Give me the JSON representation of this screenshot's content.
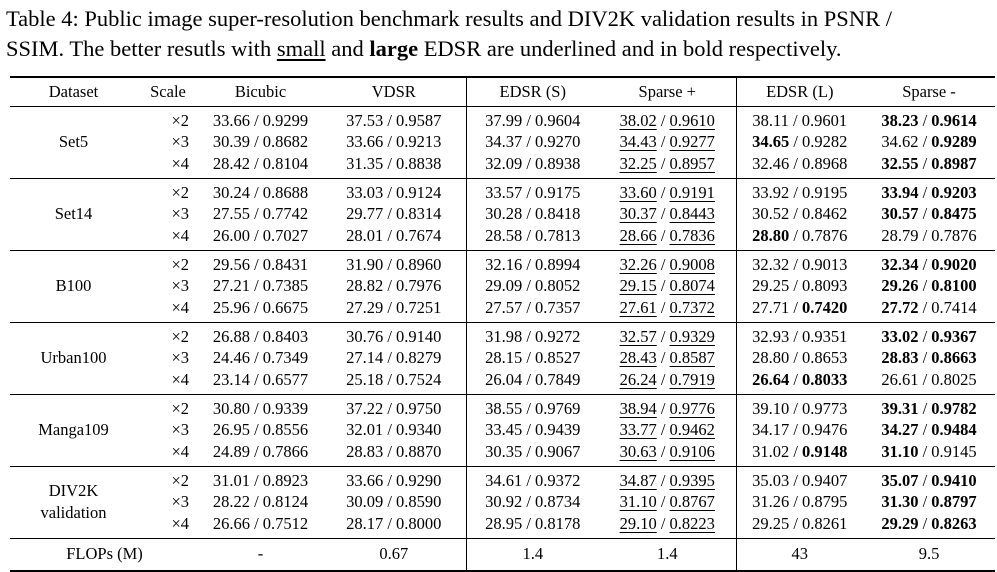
{
  "caption": {
    "line1": "Table 4: Public image super-resolution benchmark results and DIV2K validation results in PSNR /",
    "line2_pre": "SSIM. The better resutls with ",
    "line2_small": "small",
    "line2_mid": " and ",
    "line2_large": "large",
    "line2_post": " EDSR are underlined and in bold respectively."
  },
  "headers": [
    "Dataset",
    "Scale",
    "Bicubic",
    "VDSR",
    "EDSR (S)",
    "Sparse +",
    "EDSR (L)",
    "Sparse -"
  ],
  "groups": [
    {
      "name": "Set5",
      "rows": [
        {
          "scale": "×2",
          "bicubic": "33.66 / 0.9299",
          "vdsr": "37.53 / 0.9587",
          "edsr_s": "37.99 / 0.9604",
          "sparse_p": [
            "38.02",
            "0.9610"
          ],
          "sp_u": [
            true,
            true
          ],
          "edsr_l": [
            "38.11",
            "0.9601"
          ],
          "el_b": [
            false,
            false
          ],
          "sparse_m": [
            "38.23",
            "0.9614"
          ],
          "sm_b": [
            true,
            true
          ]
        },
        {
          "scale": "×3",
          "bicubic": "30.39 / 0.8682",
          "vdsr": "33.66 / 0.9213",
          "edsr_s": "34.37 / 0.9270",
          "sparse_p": [
            "34.43",
            "0.9277"
          ],
          "sp_u": [
            true,
            true
          ],
          "edsr_l": [
            "34.65",
            "0.9282"
          ],
          "el_b": [
            true,
            false
          ],
          "sparse_m": [
            "34.62",
            "0.9289"
          ],
          "sm_b": [
            false,
            true
          ]
        },
        {
          "scale": "×4",
          "bicubic": "28.42 / 0.8104",
          "vdsr": "31.35 / 0.8838",
          "edsr_s": "32.09 / 0.8938",
          "sparse_p": [
            "32.25",
            "0.8957"
          ],
          "sp_u": [
            true,
            true
          ],
          "edsr_l": [
            "32.46",
            "0.8968"
          ],
          "el_b": [
            false,
            false
          ],
          "sparse_m": [
            "32.55",
            "0.8987"
          ],
          "sm_b": [
            true,
            true
          ]
        }
      ]
    },
    {
      "name": "Set14",
      "rows": [
        {
          "scale": "×2",
          "bicubic": "30.24 / 0.8688",
          "vdsr": "33.03 / 0.9124",
          "edsr_s": "33.57 / 0.9175",
          "sparse_p": [
            "33.60",
            "0.9191"
          ],
          "sp_u": [
            true,
            true
          ],
          "edsr_l": [
            "33.92",
            "0.9195"
          ],
          "el_b": [
            false,
            false
          ],
          "sparse_m": [
            "33.94",
            "0.9203"
          ],
          "sm_b": [
            true,
            true
          ]
        },
        {
          "scale": "×3",
          "bicubic": "27.55 / 0.7742",
          "vdsr": "29.77 / 0.8314",
          "edsr_s": "30.28 / 0.8418",
          "sparse_p": [
            "30.37",
            "0.8443"
          ],
          "sp_u": [
            true,
            true
          ],
          "edsr_l": [
            "30.52",
            "0.8462"
          ],
          "el_b": [
            false,
            false
          ],
          "sparse_m": [
            "30.57",
            "0.8475"
          ],
          "sm_b": [
            true,
            true
          ]
        },
        {
          "scale": "×4",
          "bicubic": "26.00 / 0.7027",
          "vdsr": "28.01 / 0.7674",
          "edsr_s": "28.58 / 0.7813",
          "sparse_p": [
            "28.66",
            "0.7836"
          ],
          "sp_u": [
            true,
            true
          ],
          "edsr_l": [
            "28.80",
            "0.7876"
          ],
          "el_b": [
            true,
            false
          ],
          "sparse_m": [
            "28.79",
            "0.7876"
          ],
          "sm_b": [
            false,
            false
          ]
        }
      ]
    },
    {
      "name": "B100",
      "rows": [
        {
          "scale": "×2",
          "bicubic": "29.56 / 0.8431",
          "vdsr": "31.90 / 0.8960",
          "edsr_s": "32.16 / 0.8994",
          "sparse_p": [
            "32.26",
            "0.9008"
          ],
          "sp_u": [
            true,
            true
          ],
          "edsr_l": [
            "32.32",
            "0.9013"
          ],
          "el_b": [
            false,
            false
          ],
          "sparse_m": [
            "32.34",
            "0.9020"
          ],
          "sm_b": [
            true,
            true
          ]
        },
        {
          "scale": "×3",
          "bicubic": "27.21 / 0.7385",
          "vdsr": "28.82 / 0.7976",
          "edsr_s": "29.09 / 0.8052",
          "sparse_p": [
            "29.15",
            "0.8074"
          ],
          "sp_u": [
            true,
            true
          ],
          "edsr_l": [
            "29.25",
            "0.8093"
          ],
          "el_b": [
            false,
            false
          ],
          "sparse_m": [
            "29.26",
            "0.8100"
          ],
          "sm_b": [
            true,
            true
          ]
        },
        {
          "scale": "×4",
          "bicubic": "25.96 / 0.6675",
          "vdsr": "27.29 / 0.7251",
          "edsr_s": "27.57 / 0.7357",
          "sparse_p": [
            "27.61",
            "0.7372"
          ],
          "sp_u": [
            true,
            true
          ],
          "edsr_l": [
            "27.71",
            "0.7420"
          ],
          "el_b": [
            false,
            true
          ],
          "sparse_m": [
            "27.72",
            "0.7414"
          ],
          "sm_b": [
            true,
            false
          ]
        }
      ]
    },
    {
      "name": "Urban100",
      "rows": [
        {
          "scale": "×2",
          "bicubic": "26.88 / 0.8403",
          "vdsr": "30.76 / 0.9140",
          "edsr_s": "31.98 / 0.9272",
          "sparse_p": [
            "32.57",
            "0.9329"
          ],
          "sp_u": [
            true,
            true
          ],
          "edsr_l": [
            "32.93",
            "0.9351"
          ],
          "el_b": [
            false,
            false
          ],
          "sparse_m": [
            "33.02",
            "0.9367"
          ],
          "sm_b": [
            true,
            true
          ]
        },
        {
          "scale": "×3",
          "bicubic": "24.46 / 0.7349",
          "vdsr": "27.14 / 0.8279",
          "edsr_s": "28.15 / 0.8527",
          "sparse_p": [
            "28.43",
            "0.8587"
          ],
          "sp_u": [
            true,
            true
          ],
          "edsr_l": [
            "28.80",
            "0.8653"
          ],
          "el_b": [
            false,
            false
          ],
          "sparse_m": [
            "28.83",
            "0.8663"
          ],
          "sm_b": [
            true,
            true
          ]
        },
        {
          "scale": "×4",
          "bicubic": "23.14 / 0.6577",
          "vdsr": "25.18 / 0.7524",
          "edsr_s": "26.04 / 0.7849",
          "sparse_p": [
            "26.24",
            "0.7919"
          ],
          "sp_u": [
            true,
            true
          ],
          "edsr_l": [
            "26.64",
            "0.8033"
          ],
          "el_b": [
            true,
            true
          ],
          "sparse_m": [
            "26.61",
            "0.8025"
          ],
          "sm_b": [
            false,
            false
          ]
        }
      ]
    },
    {
      "name": "Manga109",
      "rows": [
        {
          "scale": "×2",
          "bicubic": "30.80 / 0.9339",
          "vdsr": "37.22 / 0.9750",
          "edsr_s": "38.55 / 0.9769",
          "sparse_p": [
            "38.94",
            "0.9776"
          ],
          "sp_u": [
            true,
            true
          ],
          "edsr_l": [
            "39.10",
            "0.9773"
          ],
          "el_b": [
            false,
            false
          ],
          "sparse_m": [
            "39.31",
            "0.9782"
          ],
          "sm_b": [
            true,
            true
          ]
        },
        {
          "scale": "×3",
          "bicubic": "26.95 / 0.8556",
          "vdsr": "32.01 / 0.9340",
          "edsr_s": "33.45 / 0.9439",
          "sparse_p": [
            "33.77",
            "0.9462"
          ],
          "sp_u": [
            true,
            true
          ],
          "edsr_l": [
            "34.17",
            "0.9476"
          ],
          "el_b": [
            false,
            false
          ],
          "sparse_m": [
            "34.27",
            "0.9484"
          ],
          "sm_b": [
            true,
            true
          ]
        },
        {
          "scale": "×4",
          "bicubic": "24.89 / 0.7866",
          "vdsr": "28.83 / 0.8870",
          "edsr_s": "30.35 / 0.9067",
          "sparse_p": [
            "30.63",
            "0.9106"
          ],
          "sp_u": [
            true,
            true
          ],
          "edsr_l": [
            "31.02",
            "0.9148"
          ],
          "el_b": [
            false,
            true
          ],
          "sparse_m": [
            "31.10",
            "0.9145"
          ],
          "sm_b": [
            true,
            false
          ]
        }
      ]
    },
    {
      "name_lines": [
        "DIV2K",
        "validation"
      ],
      "rows": [
        {
          "scale": "×2",
          "bicubic": "31.01 / 0.8923",
          "vdsr": "33.66 / 0.9290",
          "edsr_s": "34.61 / 0.9372",
          "sparse_p": [
            "34.87",
            "0.9395"
          ],
          "sp_u": [
            true,
            true
          ],
          "edsr_l": [
            "35.03",
            "0.9407"
          ],
          "el_b": [
            false,
            false
          ],
          "sparse_m": [
            "35.07",
            "0.9410"
          ],
          "sm_b": [
            true,
            true
          ]
        },
        {
          "scale": "×3",
          "bicubic": "28.22 / 0.8124",
          "vdsr": "30.09 / 0.8590",
          "edsr_s": "30.92 / 0.8734",
          "sparse_p": [
            "31.10",
            "0.8767"
          ],
          "sp_u": [
            true,
            true
          ],
          "edsr_l": [
            "31.26",
            "0.8795"
          ],
          "el_b": [
            false,
            false
          ],
          "sparse_m": [
            "31.30",
            "0.8797"
          ],
          "sm_b": [
            true,
            true
          ]
        },
        {
          "scale": "×4",
          "bicubic": "26.66 / 0.7512",
          "vdsr": "28.17 / 0.8000",
          "edsr_s": "28.95 / 0.8178",
          "sparse_p": [
            "29.10",
            "0.8223"
          ],
          "sp_u": [
            true,
            true
          ],
          "edsr_l": [
            "29.25",
            "0.8261"
          ],
          "el_b": [
            false,
            false
          ],
          "sparse_m": [
            "29.29",
            "0.8263"
          ],
          "sm_b": [
            true,
            true
          ]
        }
      ]
    }
  ],
  "flops": {
    "label": "FLOPs (M)",
    "bicubic": "-",
    "vdsr": "0.67",
    "edsr_s": "1.4",
    "sparse_p": "1.4",
    "edsr_l": "43",
    "sparse_m": "9.5"
  }
}
